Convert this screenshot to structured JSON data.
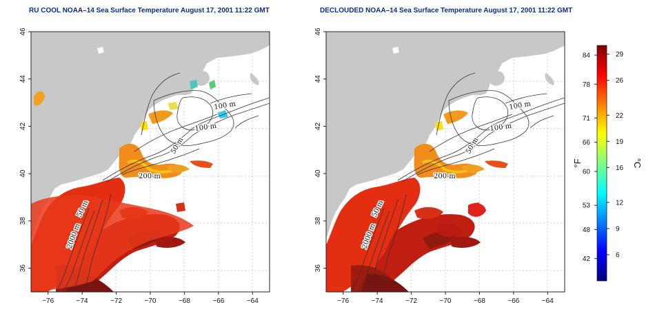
{
  "panels": [
    {
      "title": "RU COOL NOAA–14 Sea Surface Temperature August 17, 2001 11:22 GMT",
      "variant": "raw"
    },
    {
      "title": "DECLOUDED NOAA–14 Sea Surface Temperature August 17, 2001 11:22 GMT",
      "variant": "declouded"
    }
  ],
  "map": {
    "lon_range": [
      -77,
      -63
    ],
    "lat_range": [
      35,
      46
    ],
    "x_ticks": [
      "−76",
      "−74",
      "−72",
      "−70",
      "−68",
      "−66",
      "−64"
    ],
    "y_ticks": [
      "36",
      "38",
      "40",
      "42",
      "44",
      "46"
    ],
    "contour_labels": [
      "100 m",
      "100 m",
      "50 m",
      "200 m",
      "50 m",
      "2000 m"
    ],
    "colors": {
      "land": "#c8c8c8",
      "ocean": "#ffffff",
      "contour": "#333333",
      "grid": "#bbbbbb"
    }
  },
  "colorbar": {
    "fahrenheit_ticks": [
      "84",
      "78",
      "71",
      "66",
      "60",
      "53",
      "48",
      "42"
    ],
    "celsius_ticks": [
      "29",
      "26",
      "22",
      "19",
      "16",
      "12",
      "9",
      "6"
    ],
    "fahrenheit_unit": "°F",
    "celsius_unit": "°C",
    "scale_celsius": [
      3,
      30
    ],
    "gradient": [
      "#000080",
      "#0000ff",
      "#0080ff",
      "#00ffff",
      "#80ff80",
      "#ffff00",
      "#ff8000",
      "#ff0000",
      "#800000"
    ]
  }
}
